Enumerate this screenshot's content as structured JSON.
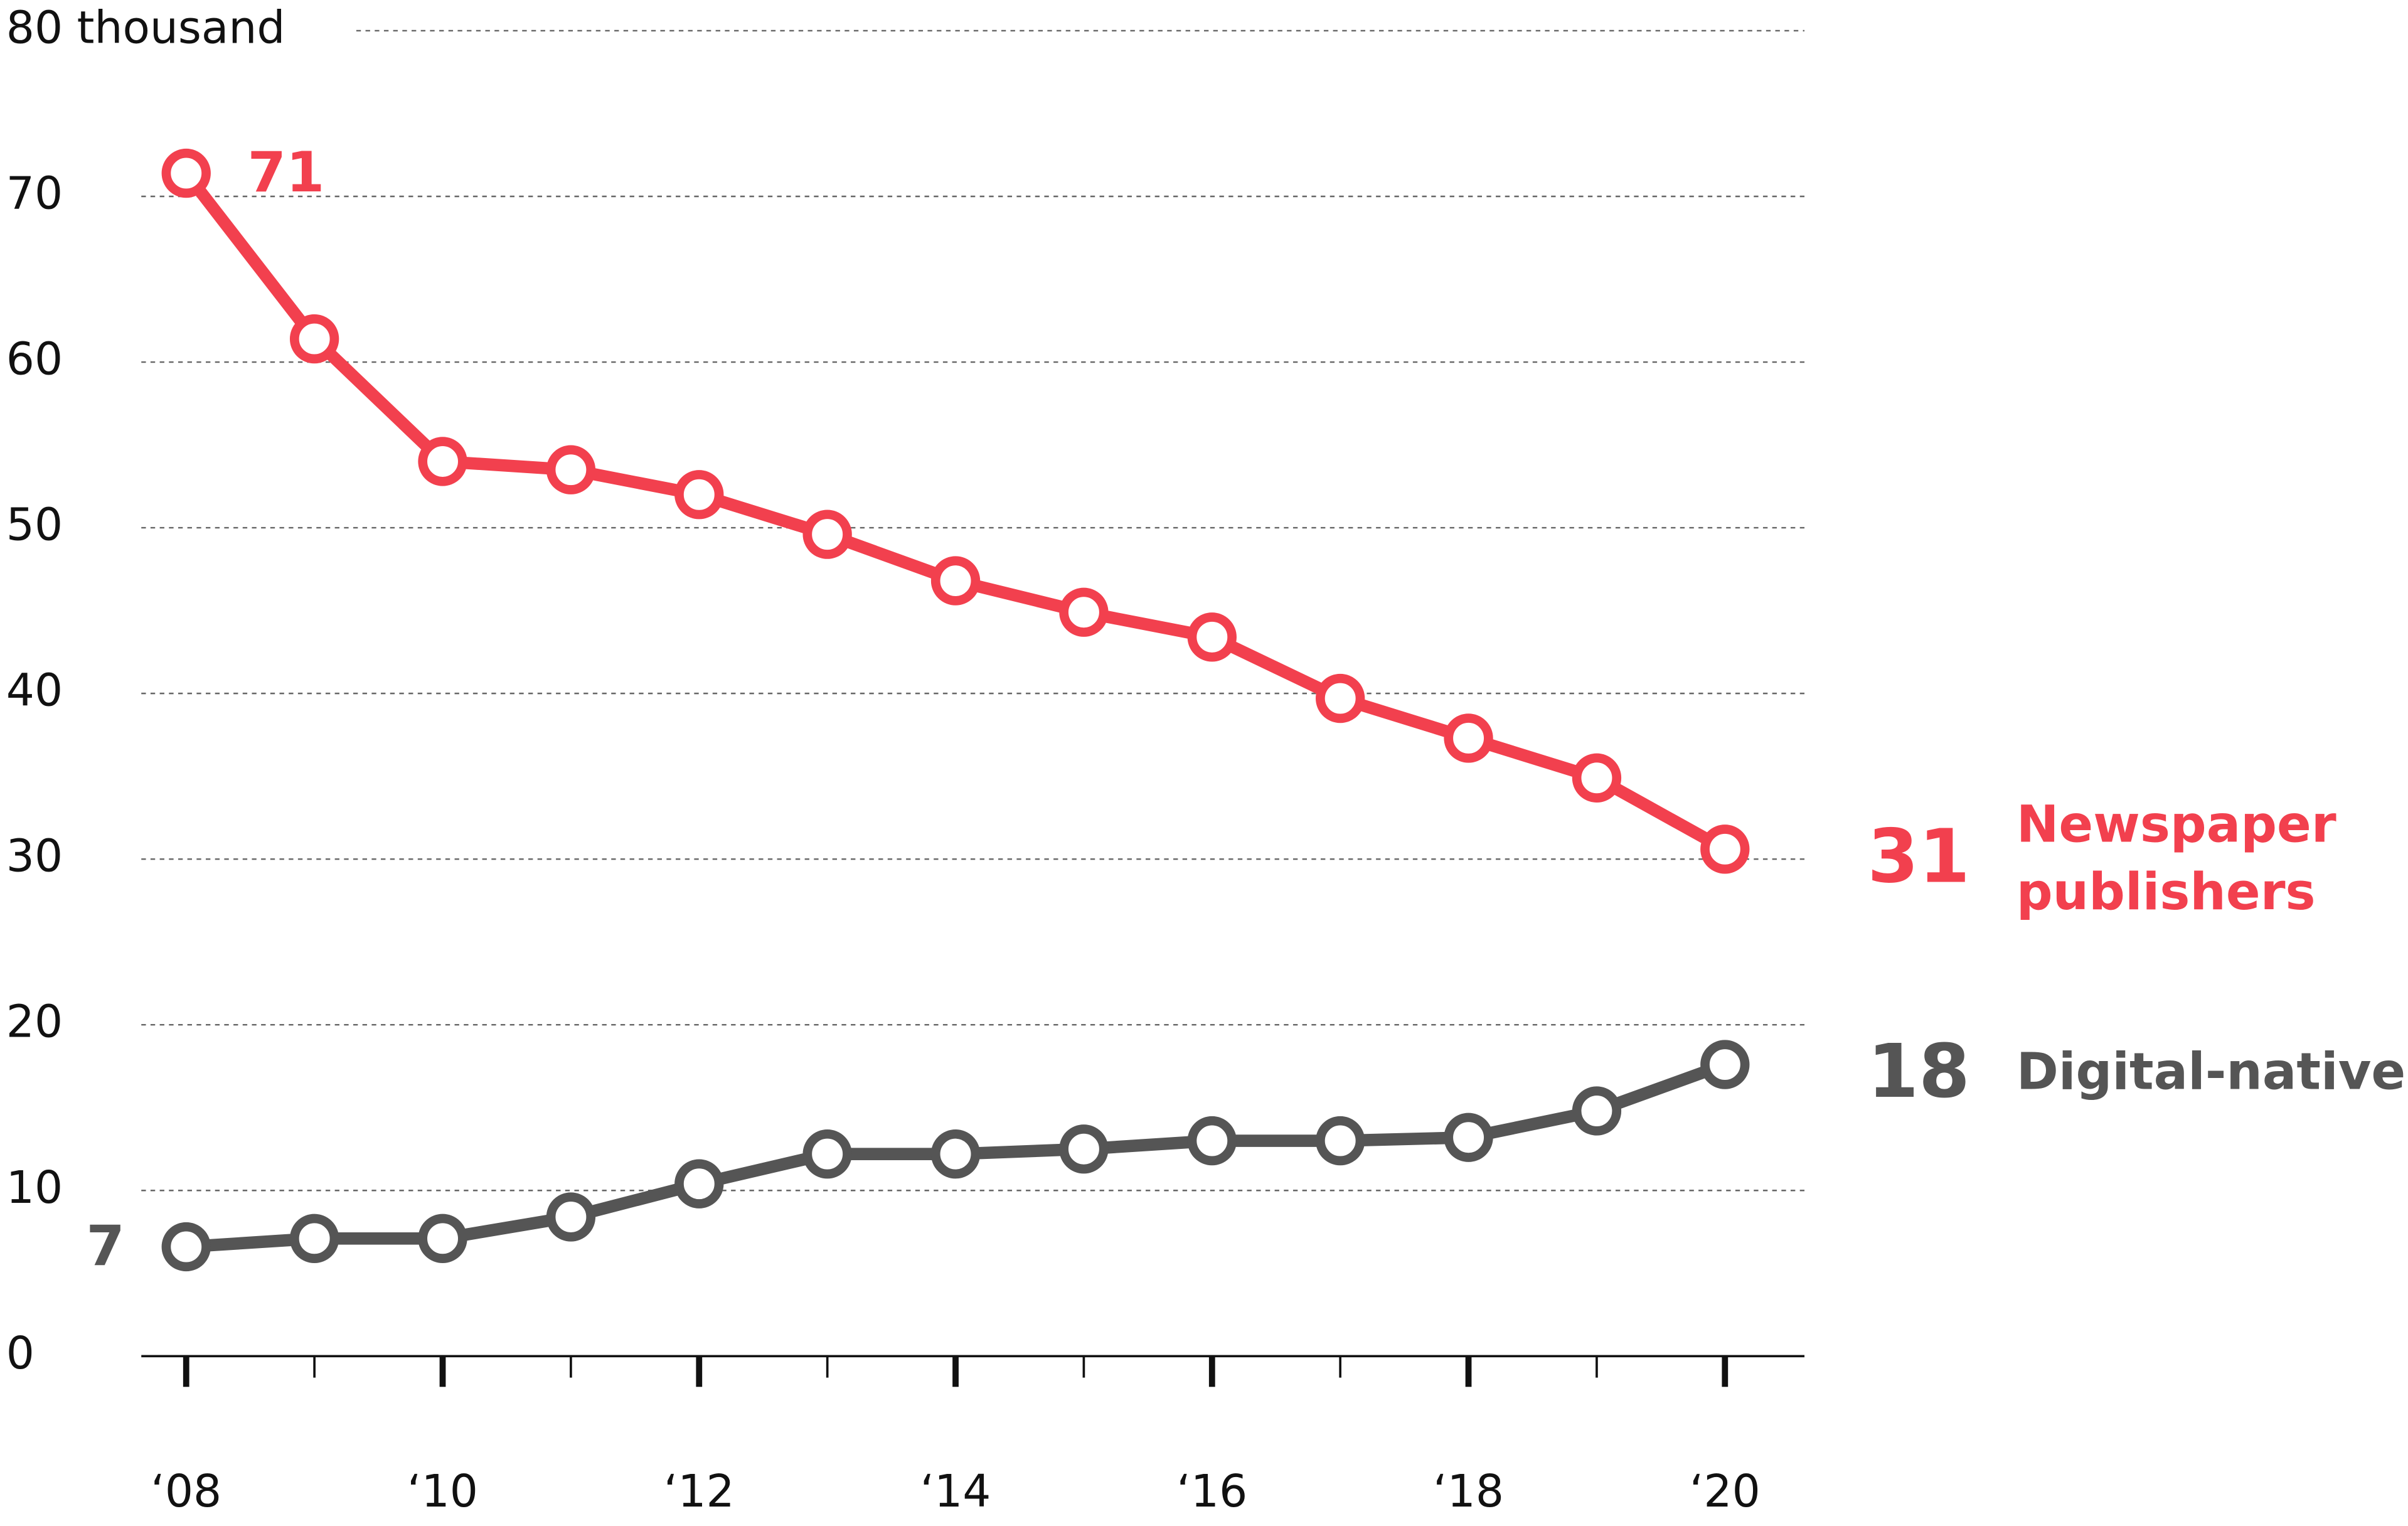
{
  "chart_data": {
    "type": "line",
    "x": [
      2008,
      2009,
      2010,
      2011,
      2012,
      2013,
      2014,
      2015,
      2016,
      2017,
      2018,
      2019,
      2020
    ],
    "series": [
      {
        "name": "Newspaper publishers",
        "color": "#f2404e",
        "values": [
          71.4,
          61.4,
          54.0,
          53.5,
          52.0,
          49.6,
          46.8,
          44.9,
          43.4,
          39.7,
          37.3,
          34.9,
          30.6
        ],
        "value_labels": [
          "71",
          null,
          null,
          null,
          null,
          null,
          null,
          null,
          null,
          null,
          null,
          null,
          "31"
        ]
      },
      {
        "name": "Digital-native",
        "color": "#555555",
        "values": [
          6.6,
          7.1,
          7.1,
          8.4,
          10.4,
          12.2,
          12.2,
          12.5,
          13.0,
          13.0,
          13.2,
          14.8,
          17.6
        ],
        "value_labels": [
          "7",
          null,
          null,
          null,
          null,
          null,
          null,
          null,
          null,
          null,
          null,
          null,
          "18"
        ]
      }
    ],
    "xlim": [
      2007.65,
      2020.62
    ],
    "xticks": [
      {
        "value": 2008,
        "label": "‘08"
      },
      {
        "value": 2010,
        "label": "‘10"
      },
      {
        "value": 2012,
        "label": "‘12"
      },
      {
        "value": 2014,
        "label": "‘14"
      },
      {
        "value": 2016,
        "label": "‘16"
      },
      {
        "value": 2018,
        "label": "‘18"
      },
      {
        "value": 2020,
        "label": "‘20"
      }
    ],
    "minor_xticks": [
      2009,
      2011,
      2013,
      2015,
      2017,
      2019
    ],
    "ylim": [
      0,
      80
    ],
    "yticks": [
      0,
      10,
      20,
      30,
      40,
      50,
      60,
      70,
      {
        "value": 80,
        "label": "80 thousand"
      }
    ],
    "grid": true
  }
}
